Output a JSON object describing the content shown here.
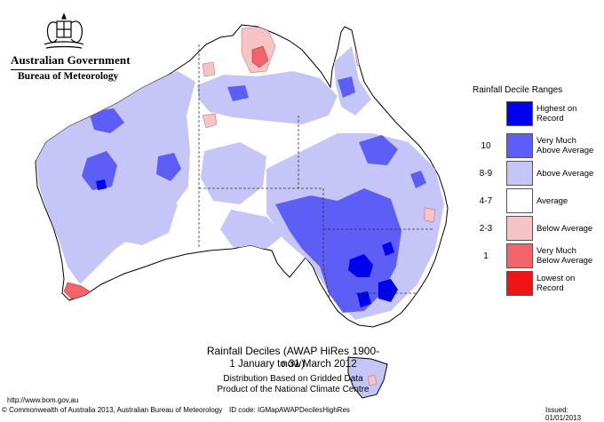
{
  "header": {
    "government": "Australian Government",
    "bureau": "Bureau of Meteorology"
  },
  "legend": {
    "title": "Rainfall Decile Ranges",
    "items": [
      {
        "range": "",
        "label_line1": "Highest on",
        "label_line2": "Record",
        "color": "#0000ee"
      },
      {
        "range": "10",
        "label_line1": "Very Much",
        "label_line2": "Above Average",
        "color": "#5c5ef6"
      },
      {
        "range": "8-9",
        "label_line1": "Above Average",
        "label_line2": "",
        "color": "#c5c6f7"
      },
      {
        "range": "4-7",
        "label_line1": "Average",
        "label_line2": "",
        "color": "#ffffff"
      },
      {
        "range": "2-3",
        "label_line1": "Below Average",
        "label_line2": "",
        "color": "#f6c4c5"
      },
      {
        "range": "1",
        "label_line1": "Very Much",
        "label_line2": "Below Average",
        "color": "#f0646a"
      },
      {
        "range": "",
        "label_line1": "Lowest on",
        "label_line2": "Record",
        "color": "#f01414"
      }
    ]
  },
  "caption": {
    "title": "Rainfall Deciles (AWAP HiRes 1900-now)",
    "date": "1 January to 31 March 2012",
    "line1": "Distribution Based on Gridded Data",
    "line2": "Product of the National Climate Centre"
  },
  "footer": {
    "url": "http://www.bom.gov.au",
    "copyright": "© Commonwealth of Australia 2013, Australian Bureau of Meteorology",
    "id_code": "ID code: IGMapAWAPDecilesHighRes",
    "issued": "Issued: 01/01/2013"
  }
}
